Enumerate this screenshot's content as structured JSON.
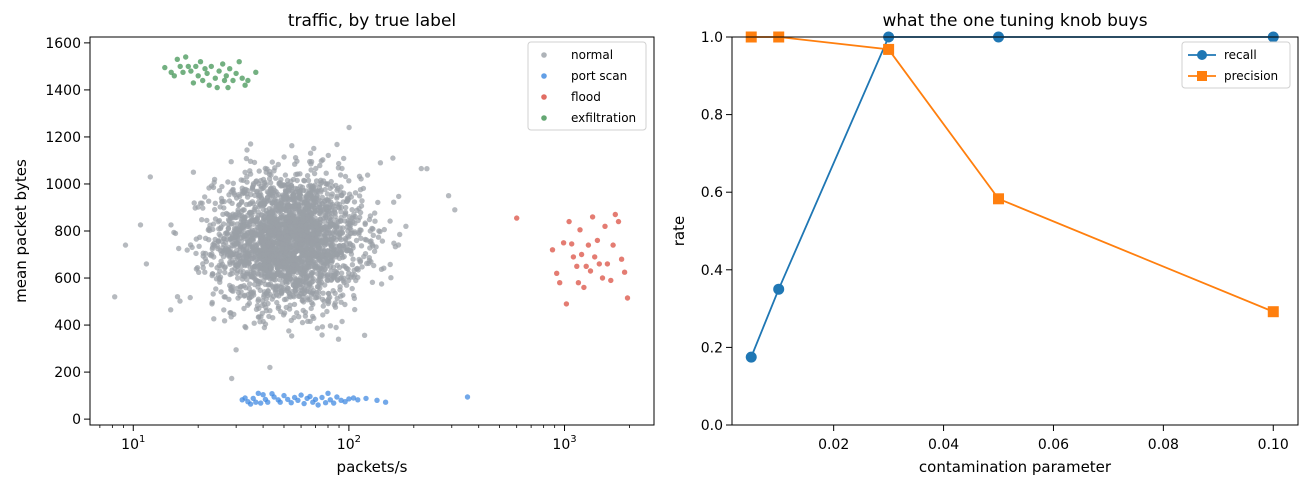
{
  "chart_data": [
    {
      "type": "scatter",
      "title": "traffic, by true label",
      "xlabel": "packets/s",
      "ylabel": "mean packet bytes",
      "xscale": "log",
      "xlim": [
        6.3,
        2600
      ],
      "ylim": [
        -25,
        1625
      ],
      "xticks": [
        {
          "value": 10,
          "base": "10",
          "exp": "1"
        },
        {
          "value": 100,
          "base": "10",
          "exp": "2"
        },
        {
          "value": 1000,
          "base": "10",
          "exp": "3"
        }
      ],
      "yticks": [
        0,
        200,
        400,
        600,
        800,
        1000,
        1200,
        1400,
        1600
      ],
      "grid": false,
      "legend_position": "top-right",
      "series": [
        {
          "name": "normal",
          "color": "#9aa0a6",
          "cloud": {
            "n": 2600,
            "logx_center": 1.72,
            "logx_sd": 0.17,
            "y_center": 760,
            "y_sd": 140
          },
          "outliers": [
            [
              8.2,
              520
            ],
            [
              9.2,
              740
            ],
            [
              11.5,
              660
            ],
            [
              12,
              1030
            ],
            [
              19,
              1050
            ],
            [
              30,
              295
            ],
            [
              35,
              1170
            ],
            [
              140,
              1090
            ],
            [
              160,
              1110
            ],
            [
              230,
              1065
            ],
            [
              290,
              950
            ],
            [
              310,
              890
            ]
          ]
        },
        {
          "name": "port scan",
          "color": "#3b87e0",
          "points": [
            [
              32,
              82
            ],
            [
              33,
              90
            ],
            [
              34,
              74
            ],
            [
              35,
              64
            ],
            [
              36,
              88
            ],
            [
              37,
              72
            ],
            [
              38,
              110
            ],
            [
              39,
              68
            ],
            [
              40,
              104
            ],
            [
              41,
              84
            ],
            [
              42,
              72
            ],
            [
              44,
              108
            ],
            [
              45,
              94
            ],
            [
              47,
              82
            ],
            [
              48,
              72
            ],
            [
              50,
              100
            ],
            [
              52,
              84
            ],
            [
              54,
              70
            ],
            [
              56,
              92
            ],
            [
              58,
              80
            ],
            [
              60,
              102
            ],
            [
              62,
              66
            ],
            [
              64,
              88
            ],
            [
              66,
              96
            ],
            [
              68,
              72
            ],
            [
              70,
              84
            ],
            [
              72,
              60
            ],
            [
              75,
              92
            ],
            [
              78,
              70
            ],
            [
              80,
              110
            ],
            [
              82,
              82
            ],
            [
              85,
              68
            ],
            [
              88,
              94
            ],
            [
              92,
              80
            ],
            [
              96,
              74
            ],
            [
              100,
              86
            ],
            [
              105,
              90
            ],
            [
              110,
              82
            ],
            [
              120,
              88
            ],
            [
              135,
              80
            ],
            [
              148,
              72
            ],
            [
              355,
              94
            ]
          ]
        },
        {
          "name": "flood",
          "color": "#d9493c",
          "points": [
            [
              600,
              855
            ],
            [
              880,
              720
            ],
            [
              920,
              620
            ],
            [
              950,
              580
            ],
            [
              990,
              750
            ],
            [
              1020,
              490
            ],
            [
              1050,
              840
            ],
            [
              1080,
              745
            ],
            [
              1100,
              690
            ],
            [
              1140,
              650
            ],
            [
              1160,
              580
            ],
            [
              1180,
              805
            ],
            [
              1200,
              700
            ],
            [
              1230,
              560
            ],
            [
              1260,
              650
            ],
            [
              1290,
              740
            ],
            [
              1320,
              630
            ],
            [
              1350,
              860
            ],
            [
              1380,
              690
            ],
            [
              1420,
              760
            ],
            [
              1450,
              660
            ],
            [
              1500,
              600
            ],
            [
              1540,
              820
            ],
            [
              1580,
              660
            ],
            [
              1640,
              590
            ],
            [
              1680,
              740
            ],
            [
              1720,
              870
            ],
            [
              1780,
              840
            ],
            [
              1840,
              680
            ],
            [
              1900,
              625
            ],
            [
              1960,
              515
            ]
          ]
        },
        {
          "name": "exfiltration",
          "color": "#3d9150",
          "points": [
            [
              14,
              1495
            ],
            [
              15,
              1475
            ],
            [
              15.5,
              1460
            ],
            [
              16,
              1530
            ],
            [
              16.5,
              1500
            ],
            [
              17,
              1475
            ],
            [
              17.5,
              1540
            ],
            [
              18,
              1500
            ],
            [
              18.5,
              1480
            ],
            [
              19,
              1430
            ],
            [
              19.5,
              1500
            ],
            [
              20,
              1460
            ],
            [
              20.5,
              1520
            ],
            [
              21,
              1440
            ],
            [
              21.5,
              1490
            ],
            [
              22,
              1470
            ],
            [
              22.5,
              1420
            ],
            [
              23,
              1500
            ],
            [
              24,
              1450
            ],
            [
              24.5,
              1410
            ],
            [
              25,
              1480
            ],
            [
              26,
              1510
            ],
            [
              26.5,
              1440
            ],
            [
              27,
              1460
            ],
            [
              27.5,
              1410
            ],
            [
              28,
              1490
            ],
            [
              29,
              1440
            ],
            [
              30,
              1470
            ],
            [
              31,
              1520
            ],
            [
              32,
              1450
            ],
            [
              33,
              1420
            ],
            [
              34,
              1440
            ],
            [
              37,
              1475
            ]
          ]
        }
      ]
    },
    {
      "type": "line",
      "title": "what the one tuning knob buys",
      "xlabel": "contamination parameter",
      "ylabel": "rate",
      "xlim": [
        0.0015,
        0.1045
      ],
      "ylim": [
        0.0,
        1.0
      ],
      "xticks": [
        0.02,
        0.04,
        0.06,
        0.08,
        0.1
      ],
      "xtick_labels": [
        "0.02",
        "0.04",
        "0.06",
        "0.08",
        "0.10"
      ],
      "yticks": [
        0.0,
        0.2,
        0.4,
        0.6,
        0.8,
        1.0
      ],
      "ytick_labels": [
        "0.0",
        "0.2",
        "0.4",
        "0.6",
        "0.8",
        "1.0"
      ],
      "grid": false,
      "legend_position": "top-right",
      "x": [
        0.005,
        0.01,
        0.03,
        0.05,
        0.1
      ],
      "series": [
        {
          "name": "recall",
          "color": "#1f77b4",
          "marker": "circle",
          "values": [
            0.175,
            0.35,
            1.0,
            1.0,
            1.0
          ]
        },
        {
          "name": "precision",
          "color": "#ff7f0e",
          "marker": "square",
          "values": [
            1.0,
            1.0,
            0.968,
            0.583,
            0.292
          ]
        }
      ]
    }
  ]
}
